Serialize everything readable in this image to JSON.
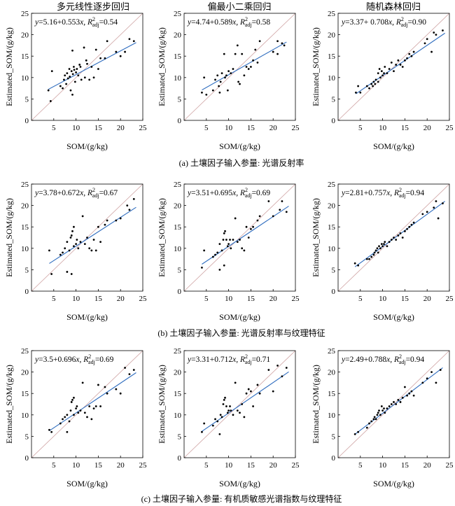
{
  "column_titles": [
    "多元线性逐步回归",
    "偏最小二乘回归",
    "随机森林回归"
  ],
  "row_captions": [
    "(a) 土壤因子输入参量: 光谱反射率",
    "(b) 土壤因子输入参量: 光谱反射率与纹理特征",
    "(c) 土壤因子输入参量: 有机质敏感光谱指数与纹理特征"
  ],
  "axis": {
    "xlabel": "SOM/(g/kg)",
    "ylabel": "Estimated_SOM/(g/kg)",
    "xlim": [
      0,
      25
    ],
    "ylim": [
      0,
      25
    ],
    "xticks": [
      5,
      10,
      15,
      20,
      25
    ],
    "yticks": [
      0,
      5,
      10,
      15,
      20,
      25
    ],
    "grid": false,
    "identity_line": true
  },
  "equation_format": {
    "separator": ", ",
    "r_symbol": "R",
    "r_sup": "2",
    "r_sub": "adj",
    "equals": "="
  },
  "colors": {
    "regression_line": "#2f6dbf",
    "identity_line": "#cfa3a3",
    "points": "#000000",
    "frame": "#000000"
  },
  "chart_data": [
    {
      "type": "scatter",
      "equation": "y=5.16+0.553x",
      "r2_adj": "0.54",
      "intercept": 5.16,
      "slope": 0.553,
      "points": [
        [
          3.8,
          7.0
        ],
        [
          4.3,
          4.5
        ],
        [
          4.6,
          11.5
        ],
        [
          6.5,
          8.0
        ],
        [
          7.0,
          7.5
        ],
        [
          7.3,
          9.5
        ],
        [
          7.5,
          10.5
        ],
        [
          7.8,
          8.5
        ],
        [
          8.0,
          11.0
        ],
        [
          8.2,
          9.8
        ],
        [
          8.5,
          12.0
        ],
        [
          8.6,
          10.2
        ],
        [
          8.8,
          7.0
        ],
        [
          9.2,
          16.3
        ],
        [
          9.0,
          11.5
        ],
        [
          9.2,
          6.0
        ],
        [
          9.3,
          10.8
        ],
        [
          9.5,
          12.5
        ],
        [
          9.6,
          11.8
        ],
        [
          9.8,
          9.0
        ],
        [
          10.0,
          11.2
        ],
        [
          10.2,
          12.0
        ],
        [
          10.5,
          10.5
        ],
        [
          10.8,
          13.0
        ],
        [
          11.0,
          12.5
        ],
        [
          11.2,
          9.5
        ],
        [
          11.8,
          17.0
        ],
        [
          12.0,
          10.0
        ],
        [
          12.3,
          14.0
        ],
        [
          12.5,
          13.2
        ],
        [
          13.0,
          9.5
        ],
        [
          13.5,
          12.5
        ],
        [
          14.0,
          10.0
        ],
        [
          14.5,
          16.5
        ],
        [
          15.0,
          12.0
        ],
        [
          15.5,
          14.5
        ],
        [
          16.5,
          14.5
        ],
        [
          17.0,
          18.5
        ],
        [
          19.0,
          16.0
        ],
        [
          20.0,
          15.0
        ],
        [
          21.0,
          16.0
        ],
        [
          22.0,
          19.0
        ],
        [
          23.0,
          18.5
        ]
      ]
    },
    {
      "type": "scatter",
      "equation": "y=4.74+0.589x",
      "r2_adj": "0.58",
      "intercept": 4.74,
      "slope": 0.589,
      "points": [
        [
          4.0,
          6.5
        ],
        [
          4.5,
          10.0
        ],
        [
          5.0,
          6.0
        ],
        [
          6.5,
          7.0
        ],
        [
          7.0,
          9.5
        ],
        [
          7.5,
          10.5
        ],
        [
          7.8,
          8.0
        ],
        [
          8.0,
          6.5
        ],
        [
          8.2,
          9.0
        ],
        [
          8.5,
          11.0
        ],
        [
          9.0,
          15.5
        ],
        [
          9.2,
          10.0
        ],
        [
          9.5,
          10.5
        ],
        [
          9.8,
          7.0
        ],
        [
          10.0,
          11.5
        ],
        [
          10.5,
          11.0
        ],
        [
          11.0,
          12.0
        ],
        [
          11.5,
          15.5
        ],
        [
          12.0,
          17.5
        ],
        [
          12.2,
          9.0
        ],
        [
          12.5,
          8.5
        ],
        [
          13.0,
          15.5
        ],
        [
          13.5,
          10.5
        ],
        [
          14.0,
          12.5
        ],
        [
          14.5,
          12.0
        ],
        [
          15.0,
          12.5
        ],
        [
          15.5,
          14.0
        ],
        [
          16.0,
          16.5
        ],
        [
          16.5,
          13.5
        ],
        [
          17.0,
          18.5
        ],
        [
          20.0,
          16.0
        ],
        [
          21.0,
          15.5
        ],
        [
          21.0,
          18.5
        ],
        [
          22.0,
          18.0
        ],
        [
          22.5,
          17.5
        ]
      ]
    },
    {
      "type": "scatter",
      "equation": "y=3.37+ 0.708x",
      "r2_adj": "0.90",
      "intercept": 3.37,
      "slope": 0.708,
      "points": [
        [
          4.0,
          6.5
        ],
        [
          4.5,
          8.0
        ],
        [
          5.0,
          6.5
        ],
        [
          6.5,
          8.0
        ],
        [
          7.0,
          7.5
        ],
        [
          7.5,
          8.5
        ],
        [
          7.8,
          8.0
        ],
        [
          8.0,
          9.0
        ],
        [
          8.3,
          8.5
        ],
        [
          8.5,
          9.5
        ],
        [
          9.0,
          9.0
        ],
        [
          9.0,
          11.0
        ],
        [
          9.3,
          12.0
        ],
        [
          9.5,
          10.0
        ],
        [
          9.8,
          11.5
        ],
        [
          10.0,
          10.5
        ],
        [
          10.3,
          11.0
        ],
        [
          10.5,
          12.5
        ],
        [
          11.0,
          11.0
        ],
        [
          11.5,
          12.0
        ],
        [
          12.0,
          13.5
        ],
        [
          12.5,
          11.5
        ],
        [
          13.0,
          13.0
        ],
        [
          13.5,
          14.0
        ],
        [
          14.0,
          13.0
        ],
        [
          14.5,
          12.5
        ],
        [
          15.0,
          14.0
        ],
        [
          15.5,
          14.5
        ],
        [
          16.0,
          15.5
        ],
        [
          16.5,
          15.0
        ],
        [
          17.0,
          16.0
        ],
        [
          19.5,
          18.0
        ],
        [
          20.0,
          19.0
        ],
        [
          21.0,
          16.0
        ],
        [
          21.5,
          20.5
        ],
        [
          22.0,
          20.0
        ],
        [
          23.5,
          21.0
        ]
      ]
    },
    {
      "type": "scatter",
      "equation": "y=3.78+0.672x",
      "r2_adj": "0.67",
      "intercept": 3.78,
      "slope": 0.672,
      "points": [
        [
          4.0,
          9.5
        ],
        [
          4.5,
          4.0
        ],
        [
          6.5,
          8.5
        ],
        [
          7.0,
          9.0
        ],
        [
          7.5,
          10.0
        ],
        [
          8.0,
          4.5
        ],
        [
          8.0,
          11.5
        ],
        [
          8.5,
          9.5
        ],
        [
          8.8,
          12.5
        ],
        [
          9.0,
          13.0
        ],
        [
          9.0,
          4.0
        ],
        [
          9.2,
          14.0
        ],
        [
          9.5,
          15.0
        ],
        [
          9.5,
          10.5
        ],
        [
          10.0,
          11.0
        ],
        [
          10.2,
          12.0
        ],
        [
          10.5,
          10.0
        ],
        [
          11.0,
          11.5
        ],
        [
          11.5,
          17.5
        ],
        [
          12.0,
          11.0
        ],
        [
          12.5,
          12.5
        ],
        [
          13.0,
          10.0
        ],
        [
          13.5,
          9.5
        ],
        [
          14.0,
          12.0
        ],
        [
          14.5,
          9.5
        ],
        [
          15.0,
          15.0
        ],
        [
          15.5,
          11.5
        ],
        [
          16.5,
          15.5
        ],
        [
          17.0,
          16.5
        ],
        [
          19.0,
          16.5
        ],
        [
          20.0,
          17.0
        ],
        [
          21.5,
          20.0
        ],
        [
          22.0,
          19.0
        ],
        [
          23.0,
          21.5
        ]
      ]
    },
    {
      "type": "scatter",
      "equation": "y=3.51+0.695x",
      "r2_adj": "0.69",
      "intercept": 3.51,
      "slope": 0.695,
      "points": [
        [
          4.0,
          5.5
        ],
        [
          4.5,
          9.5
        ],
        [
          6.5,
          8.0
        ],
        [
          7.0,
          8.5
        ],
        [
          7.5,
          9.0
        ],
        [
          8.0,
          5.0
        ],
        [
          8.0,
          11.0
        ],
        [
          8.5,
          9.5
        ],
        [
          8.8,
          12.0
        ],
        [
          9.0,
          13.5
        ],
        [
          9.0,
          6.0
        ],
        [
          9.2,
          14.0
        ],
        [
          9.5,
          12.0
        ],
        [
          9.8,
          10.5
        ],
        [
          10.0,
          11.0
        ],
        [
          10.3,
          12.0
        ],
        [
          10.5,
          10.0
        ],
        [
          11.0,
          12.0
        ],
        [
          11.5,
          17.0
        ],
        [
          12.0,
          11.5
        ],
        [
          12.5,
          12.0
        ],
        [
          13.0,
          10.0
        ],
        [
          13.5,
          9.5
        ],
        [
          14.0,
          15.0
        ],
        [
          14.5,
          12.5
        ],
        [
          15.0,
          14.5
        ],
        [
          15.5,
          15.0
        ],
        [
          16.5,
          16.5
        ],
        [
          17.0,
          17.5
        ],
        [
          19.0,
          21.0
        ],
        [
          20.0,
          17.5
        ],
        [
          21.5,
          19.0
        ],
        [
          22.0,
          21.0
        ],
        [
          23.0,
          18.5
        ]
      ]
    },
    {
      "type": "scatter",
      "equation": "y=2.81+0.757x",
      "r2_adj": "0.94",
      "intercept": 2.81,
      "slope": 0.757,
      "points": [
        [
          3.8,
          6.5
        ],
        [
          4.5,
          6.0
        ],
        [
          6.5,
          7.5
        ],
        [
          7.0,
          7.5
        ],
        [
          7.5,
          8.0
        ],
        [
          8.0,
          8.5
        ],
        [
          8.2,
          9.0
        ],
        [
          8.5,
          9.5
        ],
        [
          8.8,
          10.0
        ],
        [
          9.0,
          9.0
        ],
        [
          9.2,
          10.5
        ],
        [
          9.5,
          10.0
        ],
        [
          9.8,
          11.0
        ],
        [
          10.0,
          10.5
        ],
        [
          10.3,
          11.0
        ],
        [
          10.5,
          11.5
        ],
        [
          11.0,
          10.5
        ],
        [
          11.5,
          11.5
        ],
        [
          12.0,
          12.0
        ],
        [
          12.5,
          12.5
        ],
        [
          13.0,
          12.0
        ],
        [
          13.5,
          13.0
        ],
        [
          14.0,
          13.5
        ],
        [
          14.5,
          12.5
        ],
        [
          15.0,
          14.0
        ],
        [
          15.5,
          14.5
        ],
        [
          16.0,
          15.0
        ],
        [
          16.5,
          15.5
        ],
        [
          17.0,
          16.0
        ],
        [
          19.0,
          18.0
        ],
        [
          20.0,
          18.5
        ],
        [
          21.5,
          19.5
        ],
        [
          22.0,
          21.0
        ],
        [
          22.5,
          17.0
        ],
        [
          23.5,
          20.5
        ]
      ]
    },
    {
      "type": "scatter",
      "equation": "y=3.5+0.696x",
      "r2_adj": "0.69",
      "intercept": 3.5,
      "slope": 0.696,
      "points": [
        [
          4.0,
          6.5
        ],
        [
          4.5,
          6.0
        ],
        [
          6.5,
          8.0
        ],
        [
          7.0,
          9.0
        ],
        [
          7.5,
          9.5
        ],
        [
          8.0,
          6.0
        ],
        [
          8.0,
          10.0
        ],
        [
          8.5,
          8.5
        ],
        [
          8.8,
          11.0
        ],
        [
          9.0,
          13.0
        ],
        [
          9.2,
          13.5
        ],
        [
          9.5,
          14.0
        ],
        [
          9.5,
          10.0
        ],
        [
          10.0,
          11.5
        ],
        [
          10.2,
          12.0
        ],
        [
          10.5,
          10.5
        ],
        [
          11.0,
          11.0
        ],
        [
          11.5,
          17.5
        ],
        [
          12.0,
          10.5
        ],
        [
          12.5,
          9.5
        ],
        [
          13.0,
          12.0
        ],
        [
          13.5,
          9.0
        ],
        [
          14.0,
          11.5
        ],
        [
          14.5,
          12.0
        ],
        [
          15.0,
          17.0
        ],
        [
          15.5,
          12.0
        ],
        [
          16.5,
          16.5
        ],
        [
          17.0,
          15.0
        ],
        [
          19.0,
          16.0
        ],
        [
          20.0,
          15.0
        ],
        [
          21.0,
          21.0
        ],
        [
          22.0,
          19.5
        ],
        [
          23.0,
          20.5
        ]
      ]
    },
    {
      "type": "scatter",
      "equation": "y=3.31+0.712x",
      "r2_adj": "0.71",
      "intercept": 3.31,
      "slope": 0.712,
      "points": [
        [
          4.0,
          6.0
        ],
        [
          4.5,
          8.0
        ],
        [
          6.5,
          7.5
        ],
        [
          7.0,
          9.0
        ],
        [
          7.5,
          8.5
        ],
        [
          8.0,
          5.5
        ],
        [
          8.2,
          10.0
        ],
        [
          8.5,
          9.5
        ],
        [
          8.8,
          12.5
        ],
        [
          9.0,
          13.5
        ],
        [
          9.2,
          14.0
        ],
        [
          9.5,
          12.0
        ],
        [
          9.8,
          10.5
        ],
        [
          10.0,
          11.0
        ],
        [
          10.3,
          12.0
        ],
        [
          10.5,
          11.0
        ],
        [
          11.0,
          10.0
        ],
        [
          11.5,
          17.5
        ],
        [
          12.0,
          11.0
        ],
        [
          12.5,
          10.5
        ],
        [
          13.0,
          12.5
        ],
        [
          13.5,
          9.5
        ],
        [
          14.0,
          15.0
        ],
        [
          14.5,
          16.0
        ],
        [
          15.0,
          15.5
        ],
        [
          15.5,
          12.0
        ],
        [
          16.5,
          17.0
        ],
        [
          17.0,
          15.0
        ],
        [
          19.0,
          20.5
        ],
        [
          20.0,
          15.5
        ],
        [
          21.0,
          21.5
        ],
        [
          22.0,
          19.0
        ],
        [
          23.0,
          21.0
        ]
      ]
    },
    {
      "type": "scatter",
      "equation": "y=2.49+0.788x",
      "r2_adj": "0.94",
      "intercept": 2.49,
      "slope": 0.788,
      "points": [
        [
          3.8,
          5.5
        ],
        [
          4.5,
          6.0
        ],
        [
          6.5,
          7.0
        ],
        [
          7.0,
          8.0
        ],
        [
          7.5,
          8.5
        ],
        [
          8.0,
          9.0
        ],
        [
          8.2,
          9.5
        ],
        [
          8.5,
          9.0
        ],
        [
          8.8,
          10.0
        ],
        [
          9.0,
          10.5
        ],
        [
          9.2,
          11.0
        ],
        [
          9.5,
          10.0
        ],
        [
          9.8,
          12.0
        ],
        [
          10.0,
          11.0
        ],
        [
          10.3,
          11.5
        ],
        [
          10.5,
          10.5
        ],
        [
          11.0,
          11.5
        ],
        [
          11.5,
          12.0
        ],
        [
          12.0,
          12.5
        ],
        [
          12.5,
          13.0
        ],
        [
          13.0,
          12.5
        ],
        [
          13.5,
          13.5
        ],
        [
          14.0,
          13.0
        ],
        [
          14.5,
          14.0
        ],
        [
          15.0,
          16.5
        ],
        [
          15.5,
          14.5
        ],
        [
          16.0,
          15.0
        ],
        [
          16.5,
          15.5
        ],
        [
          17.0,
          14.5
        ],
        [
          19.0,
          17.5
        ],
        [
          20.0,
          18.5
        ],
        [
          21.0,
          20.0
        ],
        [
          22.0,
          17.5
        ],
        [
          23.0,
          20.5
        ]
      ]
    }
  ]
}
